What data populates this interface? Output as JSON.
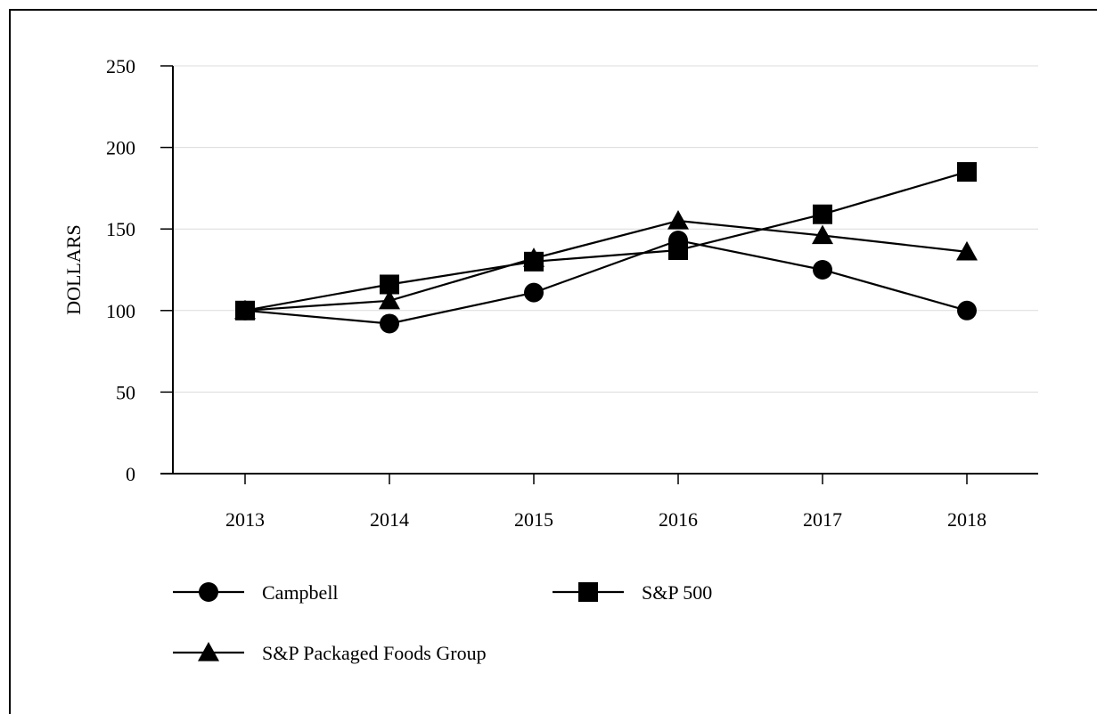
{
  "chart_data": {
    "type": "line",
    "title": "",
    "xlabel": "",
    "ylabel": "DOLLARS",
    "ylim": [
      0,
      250
    ],
    "yticks": [
      0,
      50,
      100,
      150,
      200,
      250
    ],
    "grid": true,
    "legend_position": "bottom",
    "categories": [
      "2013",
      "2014",
      "2015",
      "2016",
      "2017",
      "2018"
    ],
    "series": [
      {
        "name": "Campbell",
        "marker": "circle",
        "values": [
          100,
          92,
          111,
          143,
          125,
          100
        ]
      },
      {
        "name": "S&P 500",
        "marker": "square",
        "values": [
          100,
          116,
          130,
          137,
          159,
          185
        ]
      },
      {
        "name": "S&P Packaged Foods Group",
        "marker": "triangle",
        "values": [
          100,
          106,
          132,
          155,
          146,
          136
        ]
      }
    ],
    "colors": {
      "line": "#000000",
      "grid": "#dcdcdc"
    }
  }
}
